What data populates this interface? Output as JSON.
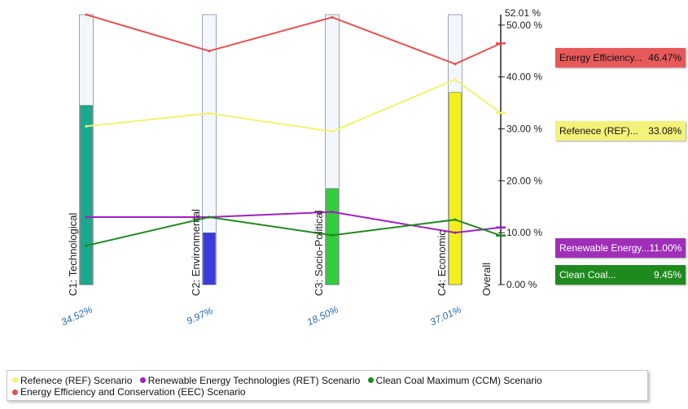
{
  "chart_data": {
    "type": "line",
    "categories": [
      "C1: Technological",
      "C2: Environmental",
      "C3: Socio-Political",
      "C4: Economic",
      "Overall"
    ],
    "criteria_weights": [
      "34.52%",
      "9.97%",
      "18.50%",
      "37.01%"
    ],
    "criteria_weight_values": [
      34.52,
      9.97,
      18.5,
      37.01
    ],
    "criteria_colors": [
      "#1aa98f",
      "#3b3bd9",
      "#2fcf3a",
      "#f2ef1a"
    ],
    "y_ticks": [
      "0.00 %",
      "10.00 %",
      "20.00 %",
      "30.00 %",
      "40.00 %",
      "50.00 %",
      "52.01 %"
    ],
    "ylim": [
      0,
      52.01
    ],
    "series": [
      {
        "name": "Energy Efficiency and Conservation (EEC) Scenario",
        "color": "#e85050",
        "values": [
          52.0,
          45.0,
          51.5,
          42.5,
          46.47
        ]
      },
      {
        "name": "Refenece (REF) Scenario",
        "color": "#f2f270",
        "values": [
          30.5,
          33.0,
          29.5,
          39.5,
          33.08
        ]
      },
      {
        "name": "Renewable Energy Technologies (RET) Scenario",
        "color": "#a020c0",
        "values": [
          13.0,
          13.0,
          14.0,
          10.0,
          11.0
        ]
      },
      {
        "name": "Clean Coal Maximum (CCM) Scenario",
        "color": "#1e8a1e",
        "values": [
          7.5,
          13.0,
          9.5,
          12.5,
          9.45
        ]
      }
    ]
  },
  "results": [
    {
      "label": "Energy Efficiency...",
      "value": "46.47%",
      "color": "#e85a5a",
      "text_color": "#111111"
    },
    {
      "label": "Refenece (REF)...",
      "value": "33.08%",
      "color": "#f2f27a",
      "text_color": "#111111"
    },
    {
      "label": "Renewable Energy...",
      "value": "11.00%",
      "color": "#a02fb8",
      "text_color": "#ffffff"
    },
    {
      "label": "Clean Coal...",
      "value": "9.45%",
      "color": "#1e8a1e",
      "text_color": "#ffffff"
    }
  ],
  "legend": [
    {
      "label": "Refenece (REF) Scenario",
      "color": "#f2f270"
    },
    {
      "label": "Renewable Energy Technologies (RET) Scenario",
      "color": "#a020c0"
    },
    {
      "label": "Clean Coal Maximum (CCM) Scenario",
      "color": "#1e8a1e"
    },
    {
      "label": "Energy Efficiency and Conservation (EEC) Scenario",
      "color": "#e85050"
    }
  ]
}
